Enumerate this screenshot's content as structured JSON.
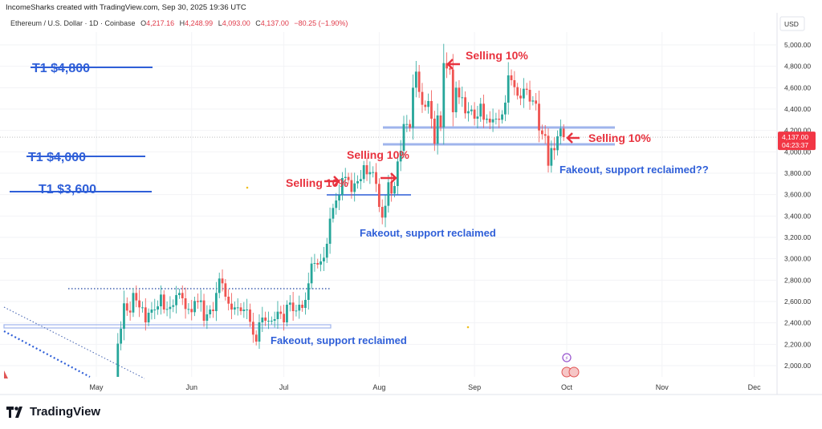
{
  "header": {
    "credit": "IncomeSharks created with TradingView.com, Sep 30, 2025 19:36 UTC",
    "symbol": "Ethereum / U.S. Dollar · 1D · Coinbase",
    "open_label": "O",
    "open": "4,217.16",
    "high_label": "H",
    "high": "4,248.99",
    "low_label": "L",
    "low": "4,093.00",
    "close_label": "C",
    "close": "4,137.00",
    "change": "−80.25 (−1.90%)"
  },
  "price_axis": {
    "currency": "USD",
    "current_price": "4,137.00",
    "countdown": "04:23:37"
  },
  "footer": {
    "brand": "TradingView"
  },
  "colors": {
    "up": "#26a69a",
    "down": "#ef5350",
    "annotation_red": "#e8333f",
    "annotation_blue": "#2f5fd8",
    "line_blue": "#9fb4ec"
  },
  "chart_data": {
    "type": "candlestick",
    "title": "Ethereum / U.S. Dollar · 1D · Coinbase",
    "ylabel": "USD",
    "ylim": [
      1900,
      5100
    ],
    "yticks": [
      2000,
      2200,
      2400,
      2600,
      2800,
      3000,
      3200,
      3400,
      3600,
      3800,
      4000,
      4200,
      4400,
      4600,
      4800,
      5000
    ],
    "ytick_labels": [
      "2,000.00",
      "2,200.00",
      "2,400.00",
      "2,600.00",
      "2,800.00",
      "3,000.00",
      "3,200.00",
      "3,400.00",
      "3,600.00",
      "3,800.00",
      "4,000.00",
      "4,200.00",
      "4,400.00",
      "4,600.00",
      "4,800.00",
      "5,000.00"
    ],
    "xtick_labels": [
      {
        "label": "May",
        "day": 0
      },
      {
        "label": "Jun",
        "day": 31
      },
      {
        "label": "Jul",
        "day": 61
      },
      {
        "label": "Aug",
        "day": 92
      },
      {
        "label": "Sep",
        "day": 123
      },
      {
        "label": "Oct",
        "day": 153
      },
      {
        "label": "Nov",
        "day": 184
      },
      {
        "label": "Dec",
        "day": 214
      }
    ],
    "start_day": 7,
    "first_open": 1810,
    "closes": [
      2206,
      2345,
      2583,
      2515,
      2497,
      2680,
      2610,
      2545,
      2545,
      2405,
      2495,
      2525,
      2525,
      2555,
      2665,
      2525,
      2530,
      2550,
      2565,
      2660,
      2680,
      2630,
      2530,
      2530,
      2500,
      2605,
      2595,
      2610,
      2420,
      2480,
      2525,
      2510,
      2680,
      2815,
      2770,
      2645,
      2580,
      2525,
      2545,
      2545,
      2510,
      2525,
      2525,
      2410,
      2290,
      2225,
      2405,
      2450,
      2420,
      2420,
      2420,
      2435,
      2505,
      2485,
      2405,
      2570,
      2590,
      2510,
      2515,
      2570,
      2540,
      2615,
      2770,
      2955,
      2960,
      2945,
      2975,
      3010,
      3140,
      3375,
      3475,
      3545,
      3595,
      3755,
      3765,
      3735,
      3625,
      3705,
      3725,
      3745,
      3875,
      3790,
      3810,
      3810,
      3700,
      3485,
      3385,
      3495,
      3715,
      3610,
      3680,
      3910,
      4010,
      4260,
      4260,
      4225,
      4600,
      4750,
      4560,
      4440,
      4420,
      4475,
      4310,
      4075,
      4340,
      4230,
      4830,
      4780,
      4770,
      4370,
      4600,
      4510,
      4510,
      4360,
      4380,
      4395,
      4310,
      4330,
      4450,
      4300,
      4310,
      4275,
      4305,
      4310,
      4300,
      4350,
      4460,
      4715,
      4670,
      4605,
      4525,
      4500,
      4590,
      4580,
      4470,
      4480,
      4450,
      4200,
      4165,
      4150,
      3870,
      4035,
      4015,
      4145,
      4217,
      4137
    ],
    "annotations": {
      "t1_4800": "T1 $4,800",
      "t1_4000": "T1 $4,000",
      "t1_3600": "T1 $3,600",
      "selling_1": "Selling 10%",
      "selling_2": "Selling 10%",
      "selling_3": "Selling 10%",
      "selling_4": "Selling 10%",
      "fakeout_1": "Fakeout, support reclaimed",
      "fakeout_2": "Fakeout, support reclaimed",
      "fakeout_3": "Fakeout, support reclaimed??"
    }
  }
}
